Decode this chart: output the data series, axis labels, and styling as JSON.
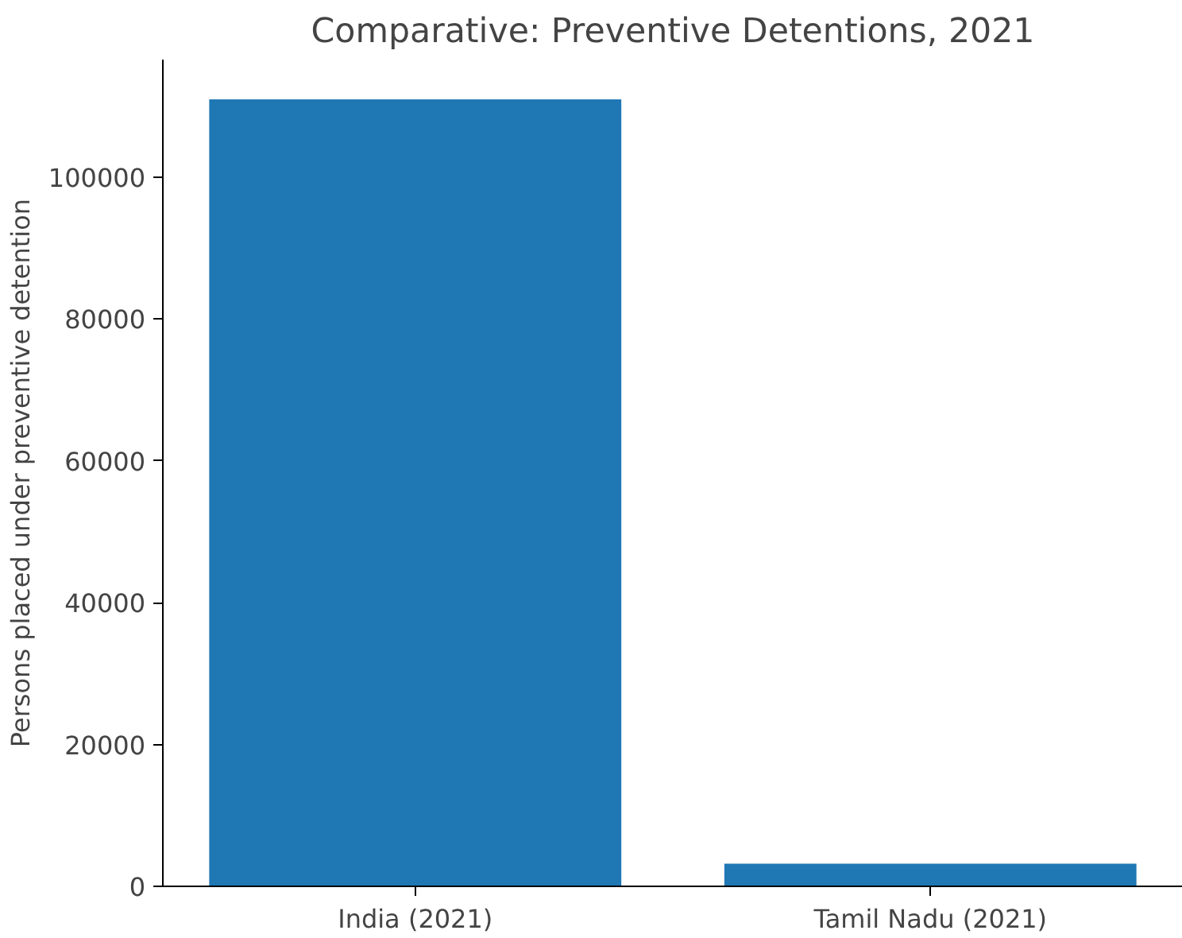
{
  "chart_data": {
    "type": "bar",
    "title": "Comparative: Preventive Detentions, 2021",
    "ylabel": "Persons placed under preventive detention",
    "categories": [
      "India (2021)",
      "Tamil Nadu (2021)"
    ],
    "values": [
      111000,
      3200
    ],
    "color": "#1f77b4",
    "ylim": [
      0,
      116600
    ],
    "yticks": [
      0,
      20000,
      40000,
      60000,
      80000,
      100000
    ],
    "grid": false
  }
}
